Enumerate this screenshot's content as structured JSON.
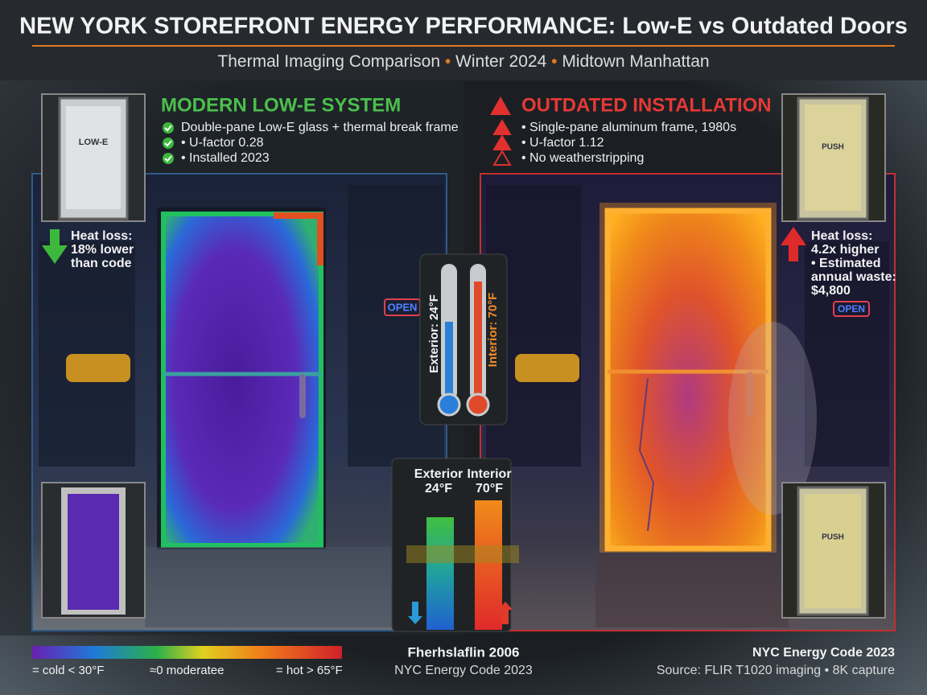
{
  "header": {
    "title": "NEW YORK STOREFRONT ENERGY PERFORMANCE: Low-E vs Outdated Doors",
    "subtitle_parts": [
      "Thermal Imaging Comparison",
      "Winter 2024",
      "Midtown Manhattan"
    ]
  },
  "left": {
    "heading": "MODERN LOW-E SYSTEM",
    "bullets": [
      "Double-pane Low-E glass + thermal break frame",
      "• U-factor 0.28",
      "• Installed 2023"
    ],
    "door_label": "LOW-E",
    "heat_loss": [
      "Heat loss:",
      "18% lower",
      "than code"
    ],
    "sign": "OPEN"
  },
  "right": {
    "heading": "OUTDATED INSTALLATION",
    "bullets": [
      "• Single-pane aluminum frame, 1980s",
      "• U-factor 1.12",
      "• No weatherstripping"
    ],
    "door_label": "PUSH",
    "door_label_2": "PUSH",
    "heat_loss": [
      "Heat loss:",
      "4.2x higher",
      "• Estimated",
      "annual waste:",
      "$4,800"
    ],
    "sign": "OPEN"
  },
  "thermometer": {
    "exterior": "Exterior: 24°F",
    "interior": "Interior: 70°F"
  },
  "comparison": {
    "exterior": [
      "Exterior",
      "24°F"
    ],
    "interior": [
      "Interior",
      "70°F"
    ]
  },
  "legend": {
    "cold": "= cold < 30°F",
    "moderate": "≈0 moderatee",
    "hot": "= hot > 65°F"
  },
  "footer": {
    "center": [
      "Fherhslaflin 2006",
      "NYC Energy Code 2023"
    ],
    "right": [
      "NYC Energy Code 2023",
      "Source: FLIR T1020 imaging • 8K capture"
    ]
  }
}
